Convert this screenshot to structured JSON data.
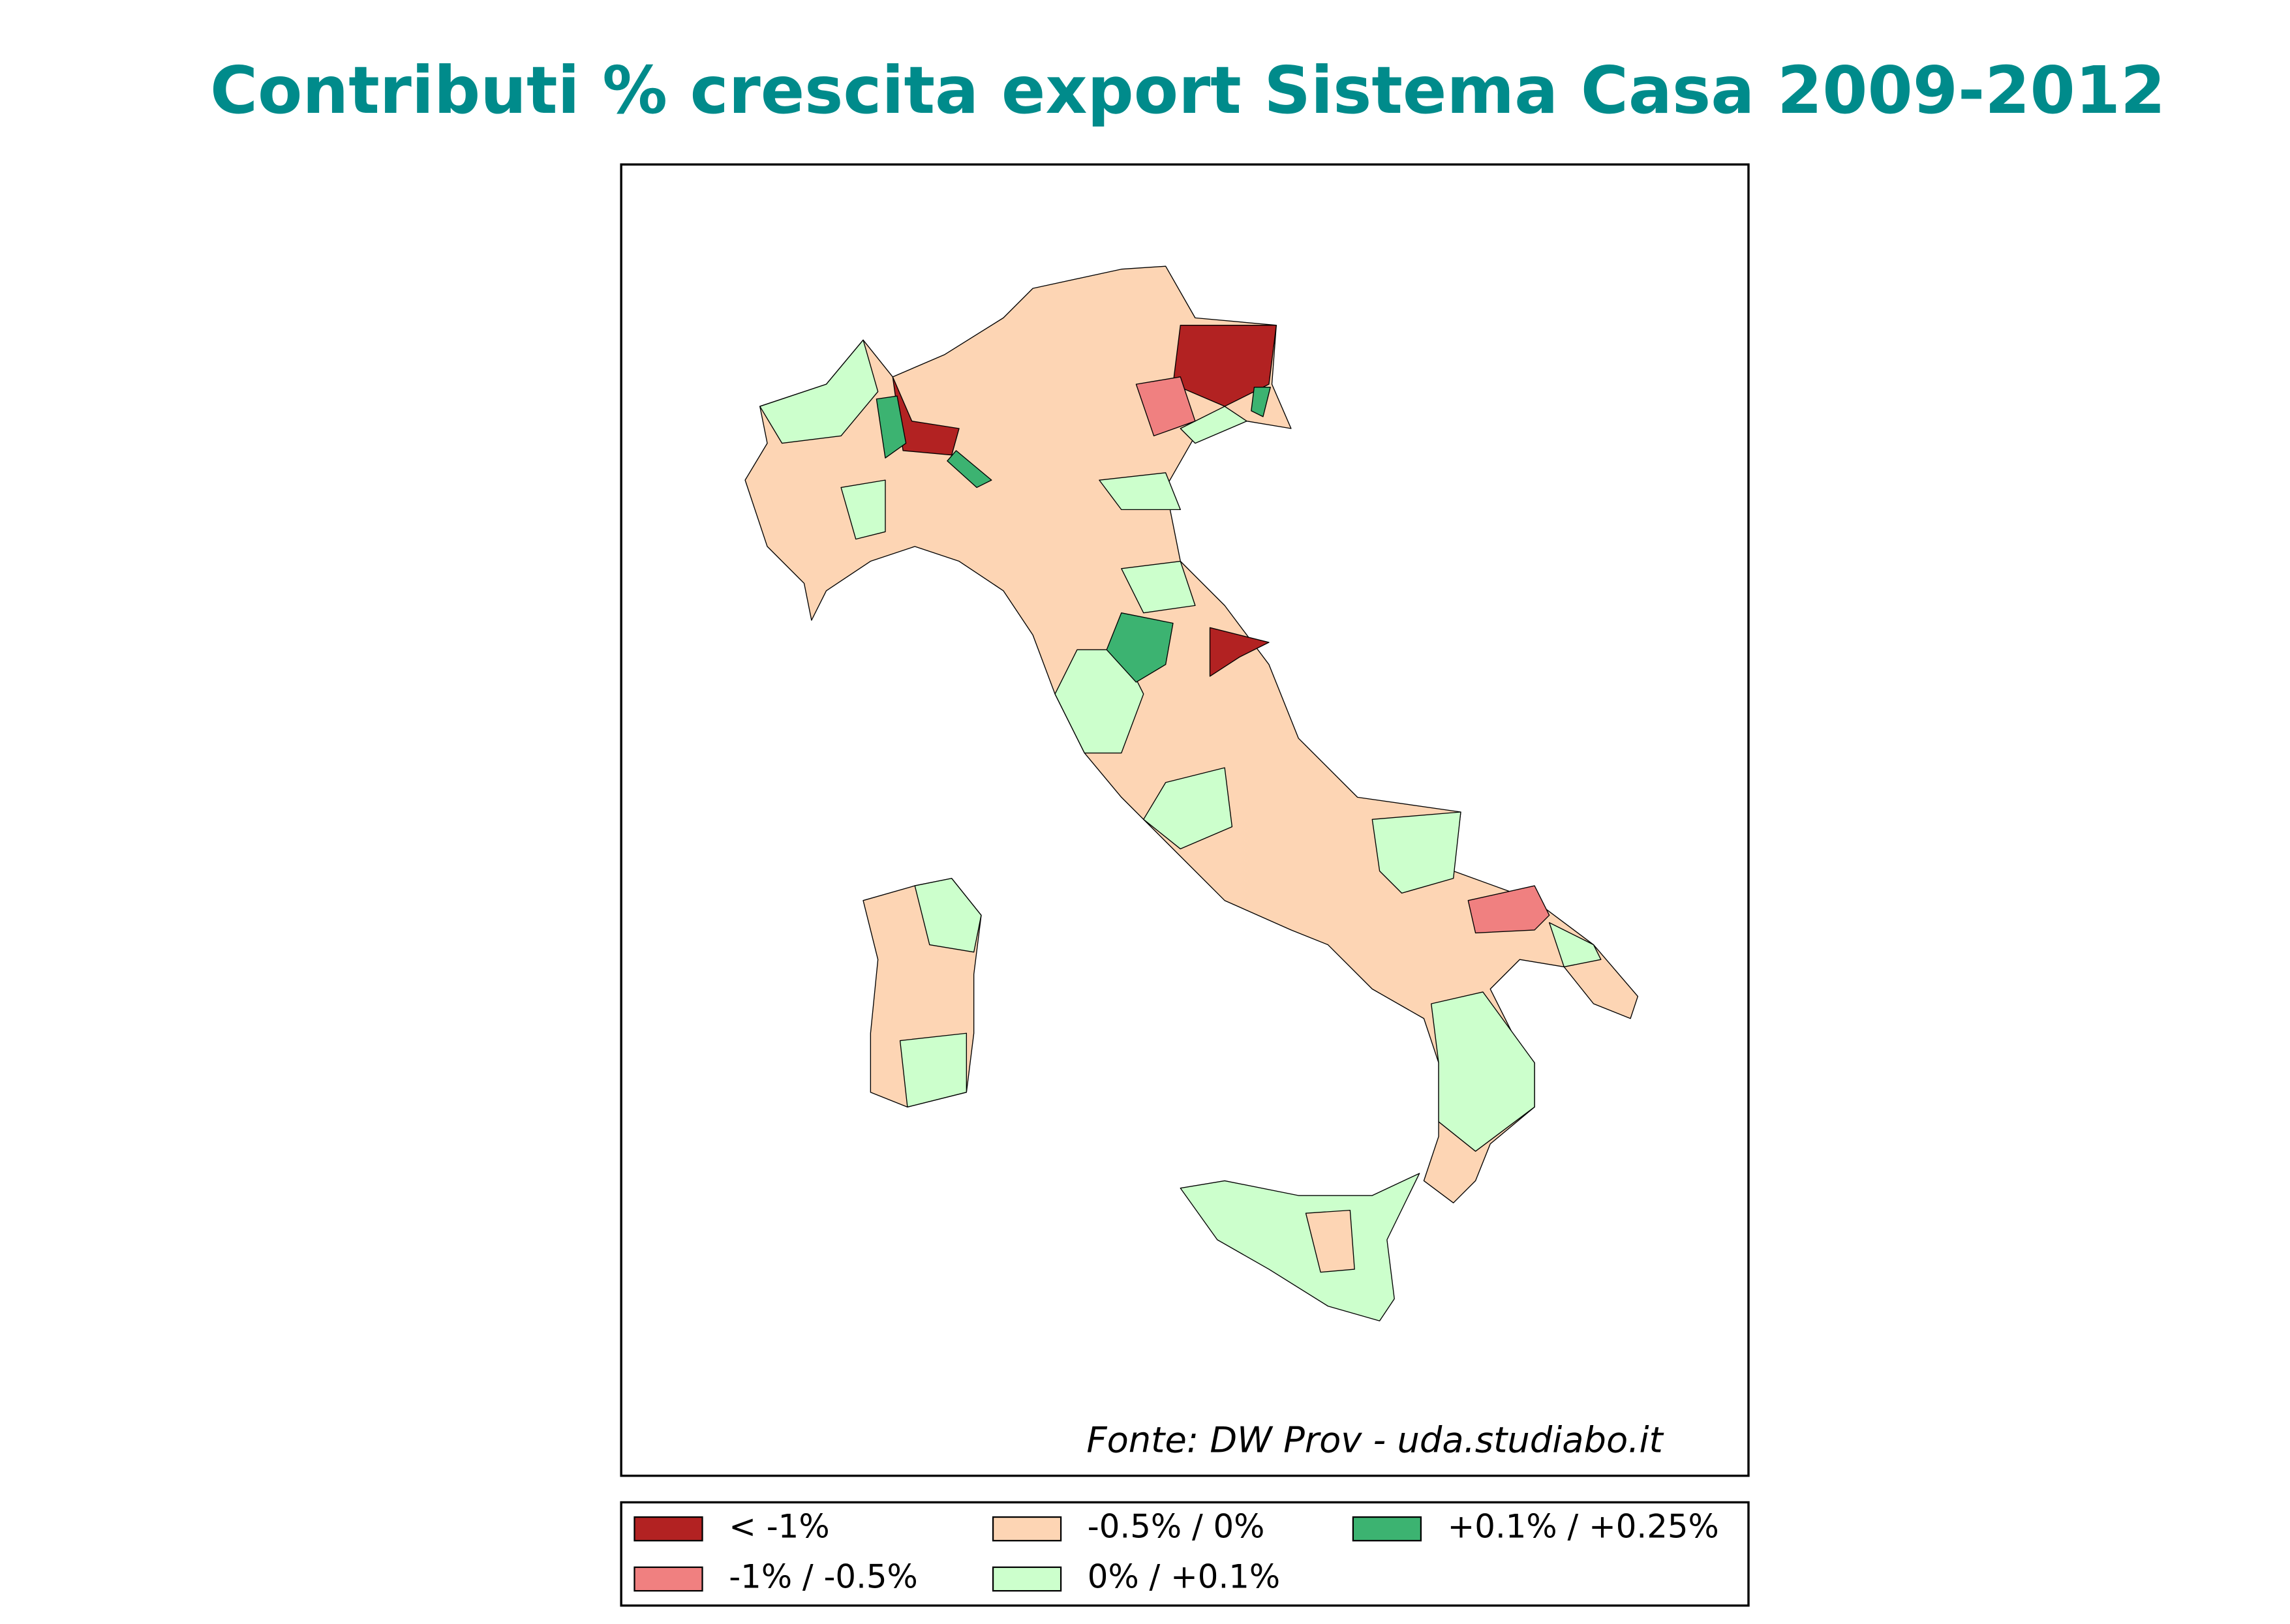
{
  "title": "Contributi % crescita export Sistema Casa 2009-2012",
  "source": "Fonte: DW Prov - uda.studiabo.it",
  "legend": {
    "entries": [
      {
        "label": "< -1%",
        "color": "#b22222"
      },
      {
        "label": "-1% / -0.5%",
        "color": "#f08080"
      },
      {
        "label": "-0.5% / 0%",
        "color": "#fdd5b4"
      },
      {
        "label": "0% / +0.1%",
        "color": "#ccffcc"
      },
      {
        "label": "+0.1% / +0.25%",
        "color": "#3cb371"
      }
    ]
  }
}
